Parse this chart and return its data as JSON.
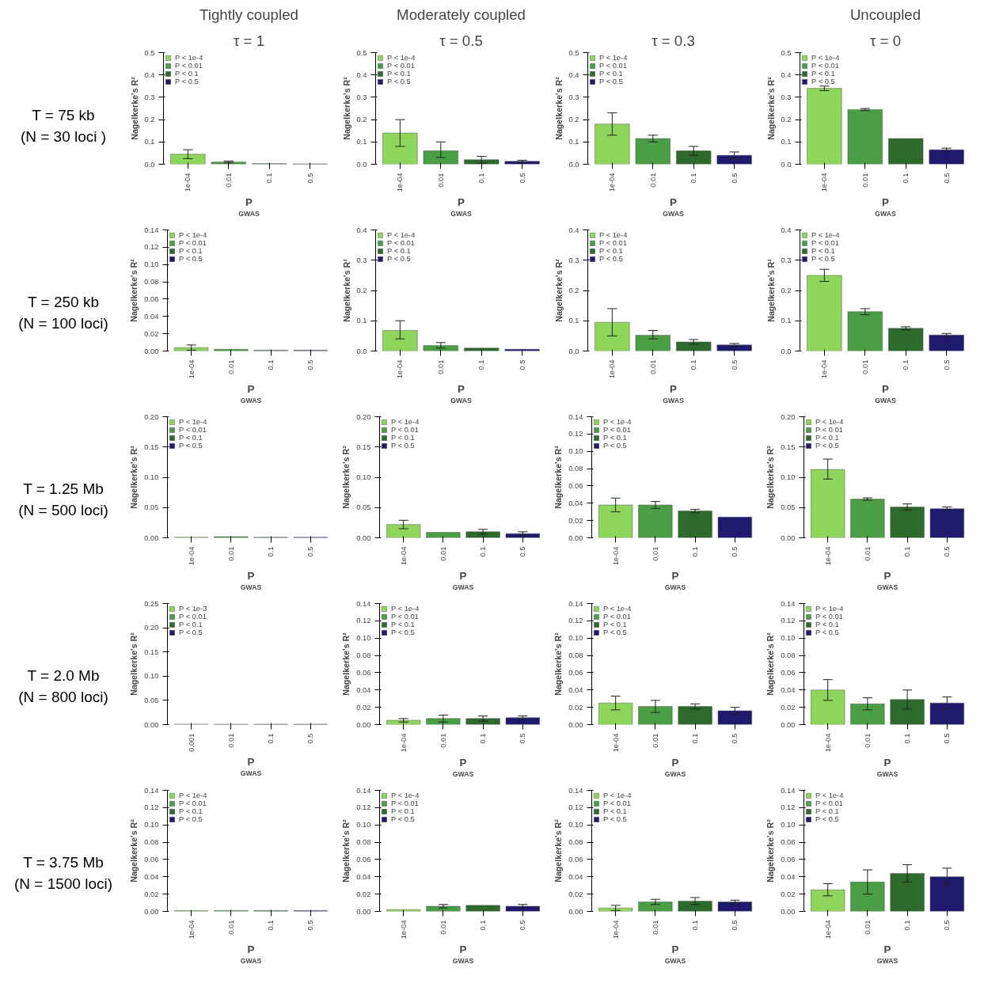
{
  "chart_data": [
    {
      "type": "bar",
      "title": "Tightly coupled",
      "subtitle": "τ = 1",
      "annotations": [
        "T = 75 kb",
        "(N = 30 loci )"
      ],
      "categories": [
        "1e-04",
        "0.01",
        "0.1",
        "0.5"
      ],
      "ylabel": "Nagelkerke's R²",
      "xlabel": "P$_{GWAS}$",
      "ylim": [
        0,
        0.5
      ],
      "yticks": [
        {
          "value": 0,
          "label": "0.0"
        },
        0.1,
        0.2,
        0.3,
        0.4,
        0.5
      ],
      "legend": "top left",
      "series": [
        {
          "name": "P < 1e-4",
          "color": "#8ed65b",
          "values": [
            0.045,
            null,
            null,
            null
          ],
          "errors": [
            0.02,
            null,
            null,
            null
          ]
        },
        {
          "name": "P < 0.01",
          "color": "#4a9e45",
          "values": [
            null,
            0.01,
            null,
            null
          ],
          "errors": [
            null,
            0.004,
            null,
            null
          ]
        },
        {
          "name": "P < 0.1",
          "color": "#2c6b2c",
          "values": [
            null,
            null,
            0.003,
            null
          ]
        },
        {
          "name": "P < 0.5",
          "color": "#1f1a6e",
          "values": [
            null,
            null,
            null,
            0.002
          ]
        }
      ]
    },
    {
      "type": "bar",
      "title": "Moderately coupled",
      "subtitle": "τ = 0.5",
      "categories": [
        "1e-04",
        "0.01",
        "0.1",
        "0.5"
      ],
      "ylabel": "Nagelkerke's R²",
      "xlabel": "P$_{GWAS}$",
      "ylim": [
        0,
        0.5
      ],
      "yticks": [
        {
          "value": 0,
          "label": "0.0"
        },
        0.1,
        0.2,
        0.3,
        0.4,
        0.5
      ],
      "legend": "top left",
      "series": [
        {
          "name": "P < 1e-4",
          "color": "#8ed65b",
          "values": [
            0.14,
            null,
            null,
            null
          ],
          "errors": [
            [
              0.08,
              0.2
            ],
            null,
            null,
            null
          ]
        },
        {
          "name": "P < 0.01",
          "color": "#4a9e45",
          "values": [
            null,
            0.06,
            null,
            null
          ],
          "errors": [
            null,
            [
              0.03,
              0.1
            ],
            null,
            null
          ]
        },
        {
          "name": "P < 0.1",
          "color": "#2c6b2c",
          "values": [
            null,
            null,
            0.02,
            null
          ],
          "errors": [
            null,
            null,
            [
              0.005,
              0.035
            ],
            null
          ]
        },
        {
          "name": "P < 0.5",
          "color": "#1f1a6e",
          "values": [
            null,
            null,
            null,
            0.013
          ],
          "errors": [
            null,
            null,
            null,
            0.005
          ]
        }
      ]
    },
    {
      "type": "bar",
      "subtitle": "τ = 0.3",
      "categories": [
        "1e-04",
        "0.01",
        "0.1",
        "0.5"
      ],
      "ylabel": "Nagelkerke's R²",
      "xlabel": "P$_{GWAS}$",
      "ylim": [
        0,
        0.5
      ],
      "yticks": [
        {
          "value": 0,
          "label": "0.0"
        },
        0.1,
        0.2,
        0.3,
        0.4,
        0.5
      ],
      "legend": "top left",
      "series": [
        {
          "name": "P < 1e-4",
          "color": "#8ed65b",
          "values": [
            0.18,
            null,
            null,
            null
          ],
          "errors": [
            [
              0.13,
              0.23
            ],
            null,
            null,
            null
          ]
        },
        {
          "name": "P < 0.01",
          "color": "#4a9e45",
          "values": [
            null,
            0.115,
            null,
            null
          ],
          "errors": [
            null,
            [
              0.1,
              0.13
            ],
            null,
            null
          ]
        },
        {
          "name": "P < 0.1",
          "color": "#2c6b2c",
          "values": [
            null,
            null,
            0.06,
            null
          ],
          "errors": [
            null,
            null,
            [
              0.04,
              0.08
            ],
            null
          ]
        },
        {
          "name": "P < 0.5",
          "color": "#1f1a6e",
          "values": [
            null,
            null,
            null,
            0.04
          ],
          "errors": [
            null,
            null,
            null,
            [
              0.025,
              0.055
            ]
          ]
        }
      ]
    },
    {
      "type": "bar",
      "title": "Uncoupled",
      "subtitle": "τ = 0",
      "categories": [
        "1e-04",
        "0.01",
        "0.1",
        "0.5"
      ],
      "ylabel": "Nagelkerke's R²",
      "xlabel": "P$_{GWAS}$",
      "ylim": [
        0,
        0.5
      ],
      "yticks": [
        {
          "value": 0,
          "label": "0.0"
        },
        0.1,
        0.2,
        0.3,
        0.4,
        0.5
      ],
      "legend": "top left",
      "series": [
        {
          "name": "P < 1e-4",
          "color": "#8ed65b",
          "values": [
            0.34,
            null,
            null,
            null
          ],
          "errors": [
            [
              0.33,
              0.35
            ],
            null,
            null,
            null
          ]
        },
        {
          "name": "P < 0.01",
          "color": "#4a9e45",
          "values": [
            null,
            0.245,
            null,
            null
          ],
          "errors": [
            null,
            [
              0.24,
              0.25
            ],
            null,
            null
          ]
        },
        {
          "name": "P < 0.1",
          "color": "#2c6b2c",
          "values": [
            null,
            null,
            0.115,
            null
          ]
        },
        {
          "name": "P < 0.5",
          "color": "#1f1a6e",
          "values": [
            null,
            null,
            null,
            0.065
          ],
          "errors": [
            null,
            null,
            null,
            [
              0.055,
              0.072
            ]
          ]
        }
      ]
    },
    {
      "type": "bar",
      "annotations": [
        "T = 250 kb",
        "(N = 100 loci)"
      ],
      "categories": [
        "1e-04",
        "0.01",
        "0.1",
        "0.5"
      ],
      "ylabel": "Nagelkerke's R²",
      "xlabel": "P$_{GWAS}$",
      "ylim": [
        0,
        0.14
      ],
      "yticks": [
        {
          "value": 0,
          "label": "0.00"
        },
        0.02,
        0.04,
        0.06,
        0.08,
        {
          "value": 0.1,
          "label": "0.10"
        },
        0.12,
        0.14
      ],
      "legend": "top left",
      "series": [
        {
          "name": "P < 1e-4",
          "color": "#8ed65b",
          "values": [
            0.004,
            null,
            null,
            null
          ],
          "errors": [
            [
              0.001,
              0.007
            ],
            null,
            null,
            null
          ]
        },
        {
          "name": "P < 0.01",
          "color": "#4a9e45",
          "values": [
            null,
            0.002,
            null,
            null
          ]
        },
        {
          "name": "P < 0.1",
          "color": "#2c6b2c",
          "values": [
            null,
            null,
            0.001,
            null
          ]
        },
        {
          "name": "P < 0.5",
          "color": "#1f1a6e",
          "values": [
            null,
            null,
            null,
            0.001
          ]
        }
      ]
    },
    {
      "type": "bar",
      "categories": [
        "1e-04",
        "0.01",
        "0.1",
        "0.5"
      ],
      "ylabel": "Nagelkerke's R²",
      "xlabel": "P$_{GWAS}$",
      "ylim": [
        0,
        0.4
      ],
      "yticks": [
        {
          "value": 0,
          "label": "0.0"
        },
        0.1,
        0.2,
        0.3,
        0.4
      ],
      "legend": "top left",
      "series": [
        {
          "name": "P < 1e-4",
          "color": "#8ed65b",
          "values": [
            0.068,
            null,
            null,
            null
          ],
          "errors": [
            [
              0.04,
              0.1
            ],
            null,
            null,
            null
          ]
        },
        {
          "name": "P < 0.01",
          "color": "#4a9e45",
          "values": [
            null,
            0.018,
            null,
            null
          ],
          "errors": [
            null,
            [
              0.01,
              0.028
            ],
            null,
            null
          ]
        },
        {
          "name": "P < 0.1",
          "color": "#2c6b2c",
          "values": [
            null,
            null,
            0.01,
            null
          ]
        },
        {
          "name": "P < 0.5",
          "color": "#1f1a6e",
          "values": [
            null,
            null,
            null,
            0.006
          ]
        }
      ]
    },
    {
      "type": "bar",
      "categories": [
        "1e-04",
        "0.01",
        "0.1",
        "0.5"
      ],
      "ylabel": "Nagelkerke's R²",
      "xlabel": "P$_{GWAS}$",
      "ylim": [
        0,
        0.4
      ],
      "yticks": [
        {
          "value": 0,
          "label": "0.0"
        },
        0.1,
        0.2,
        0.3,
        0.4
      ],
      "legend": "top left",
      "series": [
        {
          "name": "P < 1e-4",
          "color": "#8ed65b",
          "values": [
            0.095,
            null,
            null,
            null
          ],
          "errors": [
            [
              0.05,
              0.14
            ],
            null,
            null,
            null
          ]
        },
        {
          "name": "P < 0.01",
          "color": "#4a9e45",
          "values": [
            null,
            0.052,
            null,
            null
          ],
          "errors": [
            null,
            [
              0.04,
              0.068
            ],
            null,
            null
          ]
        },
        {
          "name": "P < 0.1",
          "color": "#2c6b2c",
          "values": [
            null,
            null,
            0.03,
            null
          ],
          "errors": [
            null,
            null,
            [
              0.022,
              0.038
            ],
            null
          ]
        },
        {
          "name": "P < 0.5",
          "color": "#1f1a6e",
          "values": [
            null,
            null,
            null,
            0.02
          ],
          "errors": [
            null,
            null,
            null,
            [
              0.015,
              0.025
            ]
          ]
        }
      ]
    },
    {
      "type": "bar",
      "categories": [
        "1e-04",
        "0.01",
        "0.1",
        "0.5"
      ],
      "ylabel": "Nagelkerke's R²",
      "xlabel": "P$_{GWAS}$",
      "ylim": [
        0,
        0.4
      ],
      "yticks": [
        {
          "value": 0,
          "label": "0.0"
        },
        0.1,
        0.2,
        0.3,
        0.4
      ],
      "legend": "top left",
      "series": [
        {
          "name": "P < 1e-4",
          "color": "#8ed65b",
          "values": [
            0.25,
            null,
            null,
            null
          ],
          "errors": [
            [
              0.23,
              0.27
            ],
            null,
            null,
            null
          ]
        },
        {
          "name": "P < 0.01",
          "color": "#4a9e45",
          "values": [
            null,
            0.13,
            null,
            null
          ],
          "errors": [
            null,
            [
              0.12,
              0.14
            ],
            null,
            null
          ]
        },
        {
          "name": "P < 0.1",
          "color": "#2c6b2c",
          "values": [
            null,
            null,
            0.075,
            null
          ],
          "errors": [
            null,
            null,
            [
              0.07,
              0.08
            ],
            null
          ]
        },
        {
          "name": "P < 0.5",
          "color": "#1f1a6e",
          "values": [
            null,
            null,
            null,
            0.053
          ],
          "errors": [
            null,
            null,
            null,
            [
              0.048,
              0.058
            ]
          ]
        }
      ]
    },
    {
      "type": "bar",
      "annotations": [
        "T = 1.25 Mb",
        "(N = 500 loci)"
      ],
      "categories": [
        "1e-04",
        "0.01",
        "0.1",
        "0.5"
      ],
      "ylabel": "Nagelkerke's R²",
      "xlabel": "P$_{GWAS}$",
      "ylim": [
        0,
        0.2
      ],
      "yticks": [
        {
          "value": 0,
          "label": "0.00"
        },
        0.05,
        {
          "value": 0.1,
          "label": "0.10"
        },
        0.15,
        {
          "value": 0.2,
          "label": "0.20"
        }
      ],
      "legend": "top left",
      "series": [
        {
          "name": "P < 1e-4",
          "color": "#8ed65b",
          "values": [
            0.001,
            null,
            null,
            null
          ]
        },
        {
          "name": "P < 0.01",
          "color": "#4a9e45",
          "values": [
            null,
            0.002,
            null,
            null
          ]
        },
        {
          "name": "P < 0.1",
          "color": "#2c6b2c",
          "values": [
            null,
            null,
            0.001,
            null
          ]
        },
        {
          "name": "P < 0.5",
          "color": "#1f1a6e",
          "values": [
            null,
            null,
            null,
            0.001
          ]
        }
      ]
    },
    {
      "type": "bar",
      "categories": [
        "1e-04",
        "0.01",
        "0.1",
        "0.5"
      ],
      "ylabel": "Nagelkerke's R²",
      "xlabel": "P$_{GWAS}$",
      "ylim": [
        0,
        0.2
      ],
      "yticks": [
        {
          "value": 0,
          "label": "0.00"
        },
        0.05,
        {
          "value": 0.1,
          "label": "0.10"
        },
        0.15,
        {
          "value": 0.2,
          "label": "0.20"
        }
      ],
      "legend": "top left",
      "series": [
        {
          "name": "P < 1e-4",
          "color": "#8ed65b",
          "values": [
            0.022,
            null,
            null,
            null
          ],
          "errors": [
            [
              0.015,
              0.029
            ],
            null,
            null,
            null
          ]
        },
        {
          "name": "P < 0.01",
          "color": "#4a9e45",
          "values": [
            null,
            0.009,
            null,
            null
          ]
        },
        {
          "name": "P < 0.1",
          "color": "#2c6b2c",
          "values": [
            null,
            null,
            0.01,
            null
          ],
          "errors": [
            null,
            null,
            [
              0.006,
              0.014
            ],
            null
          ]
        },
        {
          "name": "P < 0.5",
          "color": "#1f1a6e",
          "values": [
            null,
            null,
            null,
            0.007
          ],
          "errors": [
            null,
            null,
            null,
            [
              0.004,
              0.01
            ]
          ]
        }
      ]
    },
    {
      "type": "bar",
      "categories": [
        "1e-04",
        "0.01",
        "0.1",
        "0.5"
      ],
      "ylabel": "Nagelkerke's R²",
      "xlabel": "P$_{GWAS}$",
      "ylim": [
        0,
        0.14
      ],
      "yticks": [
        {
          "value": 0,
          "label": "0.00"
        },
        0.02,
        0.04,
        0.06,
        0.08,
        {
          "value": 0.1,
          "label": "0.10"
        },
        0.12,
        0.14
      ],
      "legend": "top left",
      "series": [
        {
          "name": "P < 1e-4",
          "color": "#8ed65b",
          "values": [
            0.038,
            null,
            null,
            null
          ],
          "errors": [
            [
              0.03,
              0.046
            ],
            null,
            null,
            null
          ]
        },
        {
          "name": "P < 0.01",
          "color": "#4a9e45",
          "values": [
            null,
            0.038,
            null,
            null
          ],
          "errors": [
            null,
            [
              0.034,
              0.042
            ],
            null,
            null
          ]
        },
        {
          "name": "P < 0.1",
          "color": "#2c6b2c",
          "values": [
            null,
            null,
            0.031,
            null
          ],
          "errors": [
            null,
            null,
            [
              0.029,
              0.033
            ],
            null
          ]
        },
        {
          "name": "P < 0.5",
          "color": "#1f1a6e",
          "values": [
            null,
            null,
            null,
            0.024
          ]
        }
      ]
    },
    {
      "type": "bar",
      "categories": [
        "1e-04",
        "0.01",
        "0.1",
        "0.5"
      ],
      "ylabel": "Nagelkerke's R²",
      "xlabel": "P$_{GWAS}$",
      "ylim": [
        0,
        0.2
      ],
      "yticks": [
        {
          "value": 0,
          "label": "0.00"
        },
        0.05,
        {
          "value": 0.1,
          "label": "0.10"
        },
        0.15,
        {
          "value": 0.2,
          "label": "0.20"
        }
      ],
      "legend": "top left",
      "series": [
        {
          "name": "P < 1e-4",
          "color": "#8ed65b",
          "values": [
            0.113,
            null,
            null,
            null
          ],
          "errors": [
            [
              0.097,
              0.13
            ],
            null,
            null,
            null
          ]
        },
        {
          "name": "P < 0.01",
          "color": "#4a9e45",
          "values": [
            null,
            0.064,
            null,
            null
          ],
          "errors": [
            null,
            [
              0.062,
              0.066
            ],
            null,
            null
          ]
        },
        {
          "name": "P < 0.1",
          "color": "#2c6b2c",
          "values": [
            null,
            null,
            0.051,
            null
          ],
          "errors": [
            null,
            null,
            [
              0.046,
              0.056
            ],
            null
          ]
        },
        {
          "name": "P < 0.5",
          "color": "#1f1a6e",
          "values": [
            null,
            null,
            null,
            0.048
          ],
          "errors": [
            null,
            null,
            null,
            [
              0.045,
              0.051
            ]
          ]
        }
      ]
    },
    {
      "type": "bar",
      "annotations": [
        "T = 2.0 Mb",
        "(N = 800 loci)"
      ],
      "categories": [
        "0.001",
        "0.01",
        "0.1",
        "0.5"
      ],
      "ylabel": "Nagelkerke's R²",
      "xlabel": "P$_{GWAS}$",
      "ylim": [
        0,
        0.25
      ],
      "yticks": [
        {
          "value": 0,
          "label": "0.00"
        },
        0.05,
        {
          "value": 0.1,
          "label": "0.10"
        },
        0.15,
        {
          "value": 0.2,
          "label": "0.20"
        },
        0.25
      ],
      "legend": "top left",
      "series": [
        {
          "name": "P < 1e-3",
          "color": "#8ed65b",
          "values": [
            0.001,
            null,
            null,
            null
          ]
        },
        {
          "name": "P < 0.01",
          "color": "#4a9e45",
          "values": [
            null,
            0.001,
            null,
            null
          ]
        },
        {
          "name": "P < 0.1",
          "color": "#2c6b2c",
          "values": [
            null,
            null,
            0.001,
            null
          ]
        },
        {
          "name": "P < 0.5",
          "color": "#1f1a6e",
          "values": [
            null,
            null,
            null,
            0.001
          ]
        }
      ]
    },
    {
      "type": "bar",
      "categories": [
        "1e-04",
        "0.01",
        "0.1",
        "0.5"
      ],
      "ylabel": "Nagelkerke's R²",
      "xlabel": "P$_{GWAS}$",
      "ylim": [
        0,
        0.14
      ],
      "yticks": [
        {
          "value": 0,
          "label": "0.00"
        },
        0.02,
        0.04,
        0.06,
        0.08,
        {
          "value": 0.1,
          "label": "0.10"
        },
        0.12,
        0.14
      ],
      "legend": "top left",
      "series": [
        {
          "name": "P < 1e-4",
          "color": "#8ed65b",
          "values": [
            0.005,
            null,
            null,
            null
          ],
          "errors": [
            [
              0.003,
              0.007
            ],
            null,
            null,
            null
          ]
        },
        {
          "name": "P < 0.01",
          "color": "#4a9e45",
          "values": [
            null,
            0.007,
            null,
            null
          ],
          "errors": [
            null,
            [
              0.003,
              0.011
            ],
            null,
            null
          ]
        },
        {
          "name": "P < 0.1",
          "color": "#2c6b2c",
          "values": [
            null,
            null,
            0.007,
            null
          ],
          "errors": [
            null,
            null,
            [
              0.004,
              0.01
            ],
            null
          ]
        },
        {
          "name": "P < 0.5",
          "color": "#1f1a6e",
          "values": [
            null,
            null,
            null,
            0.008
          ],
          "errors": [
            null,
            null,
            null,
            [
              0.006,
              0.01
            ]
          ]
        }
      ]
    },
    {
      "type": "bar",
      "categories": [
        "1e-04",
        "0.01",
        "0.1",
        "0.5"
      ],
      "ylabel": "Nagelkerke's R²",
      "xlabel": "P$_{GWAS}$",
      "ylim": [
        0,
        0.14
      ],
      "yticks": [
        {
          "value": 0,
          "label": "0.00"
        },
        0.02,
        0.04,
        0.06,
        0.08,
        {
          "value": 0.1,
          "label": "0.10"
        },
        0.12,
        0.14
      ],
      "legend": "top left",
      "series": [
        {
          "name": "P < 1e-4",
          "color": "#8ed65b",
          "values": [
            0.025,
            null,
            null,
            null
          ],
          "errors": [
            [
              0.017,
              0.033
            ],
            null,
            null,
            null
          ]
        },
        {
          "name": "P < 0.01",
          "color": "#4a9e45",
          "values": [
            null,
            0.021,
            null,
            null
          ],
          "errors": [
            null,
            [
              0.014,
              0.028
            ],
            null,
            null
          ]
        },
        {
          "name": "P < 0.1",
          "color": "#2c6b2c",
          "values": [
            null,
            null,
            0.021,
            null
          ],
          "errors": [
            null,
            null,
            [
              0.018,
              0.024
            ],
            null
          ]
        },
        {
          "name": "P < 0.5",
          "color": "#1f1a6e",
          "values": [
            null,
            null,
            null,
            0.016
          ],
          "errors": [
            null,
            null,
            null,
            [
              0.012,
              0.02
            ]
          ]
        }
      ]
    },
    {
      "type": "bar",
      "categories": [
        "1e-04",
        "0.01",
        "0.1",
        "0.5"
      ],
      "ylabel": "Nagelkerke's R²",
      "xlabel": "P$_{GWAS}$",
      "ylim": [
        0,
        0.14
      ],
      "yticks": [
        {
          "value": 0,
          "label": "0.00"
        },
        0.02,
        0.04,
        0.06,
        0.08,
        {
          "value": 0.1,
          "label": "0.10"
        },
        0.12,
        0.14
      ],
      "legend": "top left",
      "series": [
        {
          "name": "P < 1e-4",
          "color": "#8ed65b",
          "values": [
            0.04,
            null,
            null,
            null
          ],
          "errors": [
            [
              0.028,
              0.052
            ],
            null,
            null,
            null
          ]
        },
        {
          "name": "P < 0.01",
          "color": "#4a9e45",
          "values": [
            null,
            0.024,
            null,
            null
          ],
          "errors": [
            null,
            [
              0.017,
              0.031
            ],
            null,
            null
          ]
        },
        {
          "name": "P < 0.1",
          "color": "#2c6b2c",
          "values": [
            null,
            null,
            0.029,
            null
          ],
          "errors": [
            null,
            null,
            [
              0.018,
              0.04
            ],
            null
          ]
        },
        {
          "name": "P < 0.5",
          "color": "#1f1a6e",
          "values": [
            null,
            null,
            null,
            0.025
          ],
          "errors": [
            null,
            null,
            null,
            [
              0.018,
              0.032
            ]
          ]
        }
      ]
    },
    {
      "type": "bar",
      "annotations": [
        "T = 3.75 Mb",
        "(N = 1500 loci)"
      ],
      "categories": [
        "1e-04",
        "0.01",
        "0.1",
        "0.5"
      ],
      "ylabel": "Nagelkerke's R²",
      "xlabel": "P$_{GWAS}$",
      "ylim": [
        0,
        0.14
      ],
      "yticks": [
        {
          "value": 0,
          "label": "0.00"
        },
        0.02,
        0.04,
        0.06,
        0.08,
        {
          "value": 0.1,
          "label": "0.10"
        },
        0.12,
        0.14
      ],
      "legend": "top left",
      "series": [
        {
          "name": "P < 1e-4",
          "color": "#8ed65b",
          "values": [
            0.001,
            null,
            null,
            null
          ]
        },
        {
          "name": "P < 0.01",
          "color": "#4a9e45",
          "values": [
            null,
            0.001,
            null,
            null
          ]
        },
        {
          "name": "P < 0.1",
          "color": "#2c6b2c",
          "values": [
            null,
            null,
            0.001,
            null
          ]
        },
        {
          "name": "P < 0.5",
          "color": "#1f1a6e",
          "values": [
            null,
            null,
            null,
            0.001
          ]
        }
      ]
    },
    {
      "type": "bar",
      "categories": [
        "1e-04",
        "0.01",
        "0.1",
        "0.5"
      ],
      "ylabel": "Nagelkerke's R²",
      "xlabel": "P$_{GWAS}$",
      "ylim": [
        0,
        0.14
      ],
      "yticks": [
        {
          "value": 0,
          "label": "0.00"
        },
        0.02,
        0.04,
        0.06,
        0.08,
        {
          "value": 0.1,
          "label": "0.10"
        },
        0.12,
        0.14
      ],
      "legend": "top left",
      "series": [
        {
          "name": "P < 1e-4",
          "color": "#8ed65b",
          "values": [
            0.002,
            null,
            null,
            null
          ]
        },
        {
          "name": "P < 0.01",
          "color": "#4a9e45",
          "values": [
            null,
            0.006,
            null,
            null
          ],
          "errors": [
            null,
            [
              0.004,
              0.008
            ],
            null,
            null
          ]
        },
        {
          "name": "P < 0.1",
          "color": "#2c6b2c",
          "values": [
            null,
            null,
            0.007,
            null
          ]
        },
        {
          "name": "P < 0.5",
          "color": "#1f1a6e",
          "values": [
            null,
            null,
            null,
            0.006
          ],
          "errors": [
            null,
            null,
            null,
            [
              0.004,
              0.008
            ]
          ]
        }
      ]
    },
    {
      "type": "bar",
      "categories": [
        "1e-04",
        "0.01",
        "0.1",
        "0.5"
      ],
      "ylabel": "Nagelkerke's R²",
      "xlabel": "P$_{GWAS}$",
      "ylim": [
        0,
        0.14
      ],
      "yticks": [
        {
          "value": 0,
          "label": "0.00"
        },
        0.02,
        0.04,
        0.06,
        0.08,
        {
          "value": 0.1,
          "label": "0.10"
        },
        0.12,
        0.14
      ],
      "legend": "top left",
      "series": [
        {
          "name": "P < 1e-4",
          "color": "#8ed65b",
          "values": [
            0.004,
            null,
            null,
            null
          ],
          "errors": [
            [
              0.001,
              0.007
            ],
            null,
            null,
            null
          ]
        },
        {
          "name": "P < 0.01",
          "color": "#4a9e45",
          "values": [
            null,
            0.011,
            null,
            null
          ],
          "errors": [
            null,
            [
              0.008,
              0.014
            ],
            null,
            null
          ]
        },
        {
          "name": "P < 0.1",
          "color": "#2c6b2c",
          "values": [
            null,
            null,
            0.012,
            null
          ],
          "errors": [
            null,
            null,
            [
              0.008,
              0.016
            ],
            null
          ]
        },
        {
          "name": "P < 0.5",
          "color": "#1f1a6e",
          "values": [
            null,
            null,
            null,
            0.011
          ],
          "errors": [
            null,
            null,
            null,
            [
              0.009,
              0.013
            ]
          ]
        }
      ]
    },
    {
      "type": "bar",
      "categories": [
        "1e-04",
        "0.01",
        "0.1",
        "0.5"
      ],
      "ylabel": "Nagelkerke's R²",
      "xlabel": "P$_{GWAS}$",
      "ylim": [
        0,
        0.14
      ],
      "yticks": [
        {
          "value": 0,
          "label": "0.00"
        },
        0.02,
        0.04,
        0.06,
        0.08,
        {
          "value": 0.1,
          "label": "0.10"
        },
        0.12,
        0.14
      ],
      "legend": "top left",
      "series": [
        {
          "name": "P < 1e-4",
          "color": "#8ed65b",
          "values": [
            0.025,
            null,
            null,
            null
          ],
          "errors": [
            [
              0.018,
              0.032
            ],
            null,
            null,
            null
          ]
        },
        {
          "name": "P < 0.01",
          "color": "#4a9e45",
          "values": [
            null,
            0.034,
            null,
            null
          ],
          "errors": [
            null,
            [
              0.02,
              0.048
            ],
            null,
            null
          ]
        },
        {
          "name": "P < 0.1",
          "color": "#2c6b2c",
          "values": [
            null,
            null,
            0.044,
            null
          ],
          "errors": [
            null,
            null,
            [
              0.034,
              0.054
            ],
            null
          ]
        },
        {
          "name": "P < 0.5",
          "color": "#1f1a6e",
          "values": [
            null,
            null,
            null,
            0.04
          ],
          "errors": [
            null,
            null,
            null,
            [
              0.03,
              0.05
            ]
          ]
        }
      ]
    }
  ]
}
